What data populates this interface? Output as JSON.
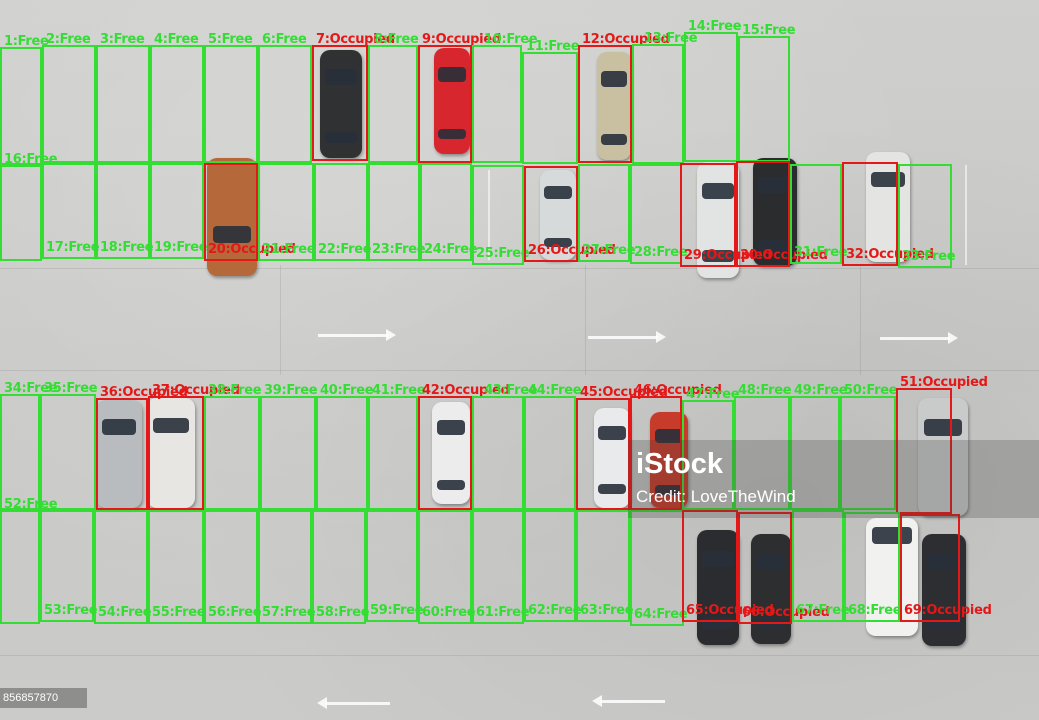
{
  "watermark": {
    "brand": "iStock",
    "credit": "Credit: LoveTheWind"
  },
  "image_id": "856857870",
  "colors": {
    "free": "#33dd33",
    "occupied": "#e41818",
    "pavement": "#c9c9c7"
  },
  "slots": [
    {
      "label": "1:Free",
      "status": "free"
    },
    {
      "label": "2:Free",
      "status": "free"
    },
    {
      "label": "3:Free",
      "status": "free"
    },
    {
      "label": "4:Free",
      "status": "free"
    },
    {
      "label": "5:Free",
      "status": "free"
    },
    {
      "label": "6:Free",
      "status": "free"
    },
    {
      "label": "7:Occupied",
      "status": "occupied"
    },
    {
      "label": "8:Free",
      "status": "free"
    },
    {
      "label": "9:Occupied",
      "status": "occupied"
    },
    {
      "label": "10:Free",
      "status": "free"
    },
    {
      "label": "11:Free",
      "status": "free"
    },
    {
      "label": "12:Occupied",
      "status": "occupied"
    },
    {
      "label": "13:Free",
      "status": "free"
    },
    {
      "label": "14:Free",
      "status": "free"
    },
    {
      "label": "15:Free",
      "status": "free"
    },
    {
      "label": "16:Free",
      "status": "free"
    },
    {
      "label": "17:Free",
      "status": "free"
    },
    {
      "label": "18:Free",
      "status": "free"
    },
    {
      "label": "19:Free",
      "status": "free"
    },
    {
      "label": "20:Occupied",
      "status": "occupied"
    },
    {
      "label": "21:Free",
      "status": "free"
    },
    {
      "label": "22:Free",
      "status": "free"
    },
    {
      "label": "23:Free",
      "status": "free"
    },
    {
      "label": "24:Free",
      "status": "free"
    },
    {
      "label": "25:Free",
      "status": "free"
    },
    {
      "label": "26:Occupied",
      "status": "occupied"
    },
    {
      "label": "27:Free",
      "status": "free"
    },
    {
      "label": "28:Free",
      "status": "free"
    },
    {
      "label": "29:Occupied",
      "status": "occupied"
    },
    {
      "label": "30:Occupied",
      "status": "occupied"
    },
    {
      "label": "31:Free",
      "status": "free"
    },
    {
      "label": "32:Occupied",
      "status": "occupied"
    },
    {
      "label": "33:Free",
      "status": "free"
    },
    {
      "label": "34:Free",
      "status": "free"
    },
    {
      "label": "35:Free",
      "status": "free"
    },
    {
      "label": "36:Occupied",
      "status": "occupied"
    },
    {
      "label": "37:Occupied",
      "status": "occupied"
    },
    {
      "label": "38:Free",
      "status": "free"
    },
    {
      "label": "39:Free",
      "status": "free"
    },
    {
      "label": "40:Free",
      "status": "free"
    },
    {
      "label": "41:Free",
      "status": "free"
    },
    {
      "label": "42:Occupied",
      "status": "occupied"
    },
    {
      "label": "43:Free",
      "status": "free"
    },
    {
      "label": "44:Free",
      "status": "free"
    },
    {
      "label": "45:Occupied",
      "status": "occupied"
    },
    {
      "label": "46:Occupied",
      "status": "occupied"
    },
    {
      "label": "47:Free",
      "status": "free"
    },
    {
      "label": "48:Free",
      "status": "free"
    },
    {
      "label": "49:Free",
      "status": "free"
    },
    {
      "label": "50:Free",
      "status": "free"
    },
    {
      "label": "51:Occupied",
      "status": "occupied"
    },
    {
      "label": "52:Free",
      "status": "free"
    },
    {
      "label": "53:Free",
      "status": "free"
    },
    {
      "label": "54:Free",
      "status": "free"
    },
    {
      "label": "55:Free",
      "status": "free"
    },
    {
      "label": "56:Free",
      "status": "free"
    },
    {
      "label": "57:Free",
      "status": "free"
    },
    {
      "label": "58:Free",
      "status": "free"
    },
    {
      "label": "59:Free",
      "status": "free"
    },
    {
      "label": "60:Free",
      "status": "free"
    },
    {
      "label": "61:Free",
      "status": "free"
    },
    {
      "label": "62:Free",
      "status": "free"
    },
    {
      "label": "63:Free",
      "status": "free"
    },
    {
      "label": "64:Free",
      "status": "free"
    },
    {
      "label": "65:Occupied",
      "status": "occupied"
    },
    {
      "label": "66:Occupied",
      "status": "occupied"
    },
    {
      "label": "67:Free",
      "status": "free"
    },
    {
      "label": "68:Free",
      "status": "free"
    },
    {
      "label": "69:Occupied",
      "status": "occupied"
    }
  ]
}
